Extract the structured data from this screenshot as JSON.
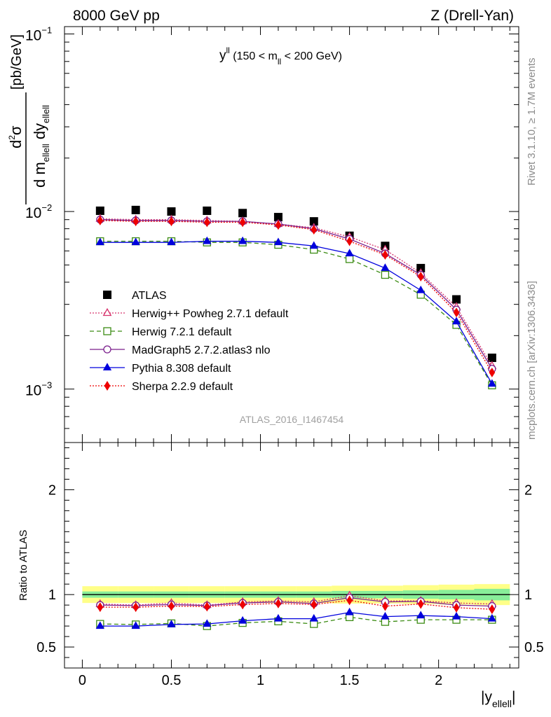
{
  "header": {
    "left": "8000 GeV pp",
    "right": "Z (Drell-Yan)"
  },
  "side_labels": {
    "rivet": "Rivet 3.1.10, ≥ 1.7M events",
    "mcplots": "mcplots.cern.ch [arXiv:1306.3436]"
  },
  "chart_data": [
    {
      "type": "scatter",
      "panel": "main",
      "annotation": {
        "base": "y",
        "sup": "ll",
        "mid": " (150 < m",
        "sub": "ll",
        "end": " < 200 GeV)"
      },
      "watermark": "ATLAS_2016_I1467454",
      "ylabel": {
        "num": "d",
        "num_sup": "2",
        "num_end": "σ",
        "den1": "d m",
        "den1_sub": "ellell",
        "den2": " dy",
        "den2_sub": "ellell",
        "units": "[pb/GeV]"
      },
      "yscale": "log",
      "ylim": [
        0.0005,
        0.11
      ],
      "xlim": [
        -0.1,
        2.45
      ],
      "ytick_labels": [
        {
          "base": "10",
          "exp": "−1",
          "value": 0.1
        },
        {
          "base": "10",
          "exp": "−2",
          "value": 0.01
        },
        {
          "base": "10",
          "exp": "−3",
          "value": 0.001
        }
      ],
      "x": [
        0.1,
        0.3,
        0.5,
        0.7,
        0.9,
        1.1,
        1.3,
        1.5,
        1.7,
        1.9,
        2.1,
        2.3
      ],
      "series": [
        {
          "name": "ATLAS",
          "color": "#000000",
          "marker": "square-filled",
          "line": "none",
          "values": [
            0.0101,
            0.0102,
            0.01,
            0.0101,
            0.0098,
            0.0093,
            0.0088,
            0.0073,
            0.0064,
            0.0048,
            0.0032,
            0.0015
          ]
        },
        {
          "name": "Herwig++ Powheg 2.7.1 default",
          "color": "#d6336c",
          "marker": "triangle-open",
          "line": "dotted",
          "values": [
            0.0091,
            0.009,
            0.009,
            0.0089,
            0.0088,
            0.0085,
            0.0081,
            0.0072,
            0.0061,
            0.0045,
            0.0029,
            0.00135
          ]
        },
        {
          "name": "Herwig 7.2.1 default",
          "color": "#3c8c14",
          "marker": "square-open",
          "line": "dashed",
          "values": [
            0.0068,
            0.0068,
            0.0068,
            0.0067,
            0.0067,
            0.0065,
            0.0061,
            0.0054,
            0.0044,
            0.0034,
            0.0023,
            0.00105
          ]
        },
        {
          "name": "MadGraph5 2.7.2.atlas3 nlo",
          "color": "#7a1e8c",
          "marker": "circle-open",
          "line": "solid",
          "values": [
            0.009,
            0.0089,
            0.0089,
            0.0088,
            0.0088,
            0.0085,
            0.008,
            0.007,
            0.0058,
            0.0044,
            0.0028,
            0.0013
          ]
        },
        {
          "name": "Pythia 8.308 default",
          "color": "#0000dd",
          "marker": "triangle-filled",
          "line": "solid",
          "values": [
            0.0067,
            0.0067,
            0.0067,
            0.0068,
            0.0068,
            0.0067,
            0.0064,
            0.0058,
            0.0048,
            0.0036,
            0.0024,
            0.00107
          ]
        },
        {
          "name": "Sherpa 2.2.9 default",
          "color": "#ee0000",
          "marker": "diamond-filled",
          "line": "dotted",
          "values": [
            0.0089,
            0.0088,
            0.0088,
            0.0087,
            0.0087,
            0.0084,
            0.0079,
            0.0068,
            0.0057,
            0.0043,
            0.0027,
            0.00124
          ]
        }
      ]
    },
    {
      "type": "line",
      "panel": "ratio",
      "ylabel": "Ratio to ATLAS",
      "xlabel": {
        "base": "|y",
        "sub": "ellell",
        "end": "|"
      },
      "ylim": [
        0.3,
        2.45
      ],
      "xlim": [
        -0.1,
        2.45
      ],
      "yticks": [
        0.5,
        1,
        2
      ],
      "ytick_labels": [
        "0.5",
        "1",
        "2"
      ],
      "xticks": [
        0,
        0.5,
        1,
        1.5,
        2
      ],
      "xtick_labels": [
        "0",
        "0.5",
        "1",
        "1.5",
        "2"
      ],
      "x": [
        0.1,
        0.3,
        0.5,
        0.7,
        0.9,
        1.1,
        1.3,
        1.5,
        1.7,
        1.9,
        2.1,
        2.3
      ],
      "bins": [
        [
          0.0,
          0.2
        ],
        [
          0.2,
          0.4
        ],
        [
          0.4,
          0.6
        ],
        [
          0.6,
          0.8
        ],
        [
          0.8,
          1.0
        ],
        [
          1.0,
          1.2
        ],
        [
          1.2,
          1.4
        ],
        [
          1.4,
          1.6
        ],
        [
          1.6,
          1.8
        ],
        [
          1.8,
          2.0
        ],
        [
          2.0,
          2.2
        ],
        [
          2.2,
          2.4
        ]
      ],
      "band_total": [
        0.08,
        0.08,
        0.08,
        0.08,
        0.08,
        0.08,
        0.08,
        0.085,
        0.085,
        0.09,
        0.095,
        0.1
      ],
      "band_stat": [
        0.03,
        0.03,
        0.03,
        0.03,
        0.03,
        0.03,
        0.03,
        0.035,
        0.035,
        0.04,
        0.045,
        0.055
      ],
      "band_colors": {
        "total": "#ffff88",
        "stat": "#88ee99"
      },
      "series": [
        {
          "name": "Herwig++ Powheg 2.7.1 default",
          "color": "#d6336c",
          "marker": "triangle-open",
          "line": "dotted",
          "values": [
            0.91,
            0.9,
            0.92,
            0.9,
            0.93,
            0.94,
            0.93,
            0.99,
            0.94,
            0.94,
            0.92,
            0.91
          ]
        },
        {
          "name": "Herwig 7.2.1 default",
          "color": "#3c8c14",
          "marker": "square-open",
          "line": "dashed",
          "values": [
            0.72,
            0.715,
            0.725,
            0.7,
            0.73,
            0.745,
            0.72,
            0.785,
            0.74,
            0.76,
            0.76,
            0.76
          ]
        },
        {
          "name": "MadGraph5 2.7.2.atlas3 nlo",
          "color": "#7a1e8c",
          "marker": "circle-open",
          "line": "solid",
          "values": [
            0.9,
            0.895,
            0.905,
            0.895,
            0.92,
            0.93,
            0.915,
            0.97,
            0.93,
            0.935,
            0.9,
            0.89
          ]
        },
        {
          "name": "Pythia 8.308 default",
          "color": "#0000dd",
          "marker": "triangle-filled",
          "line": "solid",
          "values": [
            0.7,
            0.7,
            0.715,
            0.72,
            0.75,
            0.77,
            0.77,
            0.83,
            0.79,
            0.8,
            0.79,
            0.77
          ]
        },
        {
          "name": "Sherpa 2.2.9 default",
          "color": "#ee0000",
          "marker": "diamond-filled",
          "line": "dotted",
          "values": [
            0.88,
            0.88,
            0.89,
            0.885,
            0.905,
            0.915,
            0.905,
            0.945,
            0.89,
            0.91,
            0.875,
            0.86
          ]
        }
      ]
    }
  ]
}
